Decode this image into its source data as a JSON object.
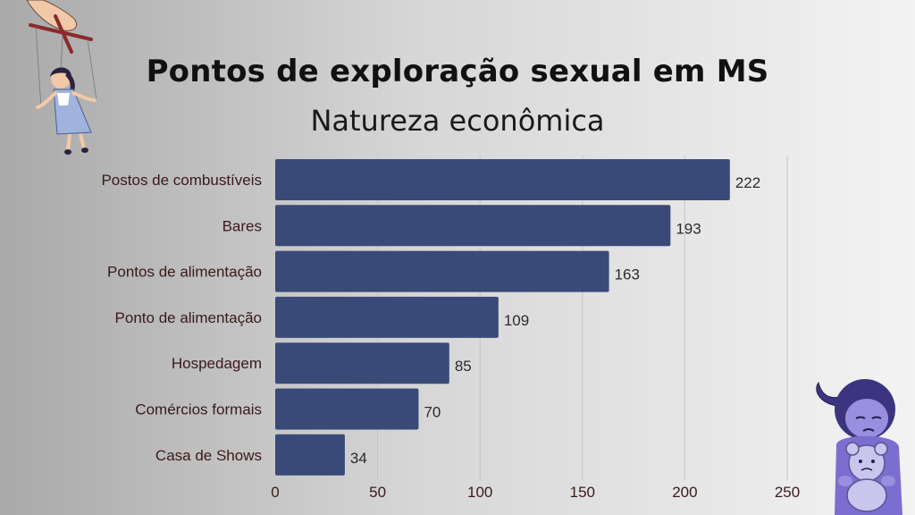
{
  "chart_data": {
    "type": "bar",
    "orientation": "horizontal",
    "title": "Pontos de exploração sexual em MS",
    "subtitle": "Natureza econômica",
    "categories": [
      "Postos de combustíveis",
      "Bares",
      "Pontos de alimentação",
      "Ponto de alimentação",
      "Hospedagem",
      "Comércios formais",
      "Casa de Shows"
    ],
    "values": [
      222,
      193,
      163,
      109,
      85,
      70,
      34
    ],
    "xlim": [
      0,
      250
    ],
    "xticks": [
      "0",
      "50",
      "100",
      "150",
      "200",
      "250"
    ],
    "grid": true,
    "colors": {
      "bar": "#3a4a78",
      "label": "#3a1a1a",
      "grid": "#c4c4c4"
    }
  },
  "decorations": {
    "top_left": "marionette-girl-illustration",
    "bottom_right": "sad-girl-with-teddy-illustration"
  }
}
